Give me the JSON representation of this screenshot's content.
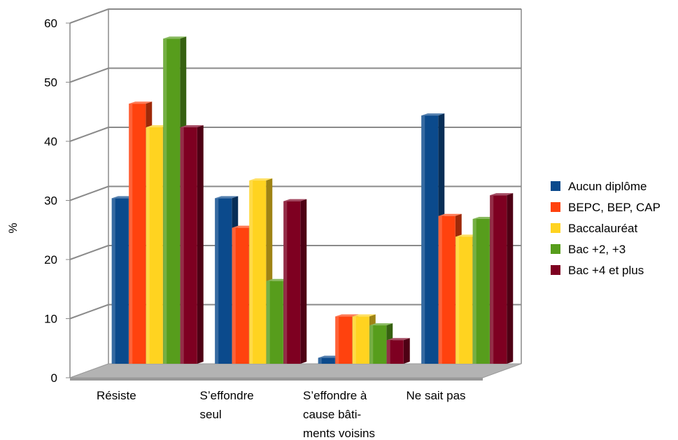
{
  "chart_data": {
    "type": "bar",
    "title": "",
    "ylabel": "%",
    "xlabel": "",
    "ylim": [
      0,
      60
    ],
    "yticks": [
      0,
      10,
      20,
      30,
      40,
      50,
      60
    ],
    "grid": true,
    "legend_position": "right",
    "categories": [
      [
        "Résiste"
      ],
      [
        "S’effondre",
        "seul"
      ],
      [
        "S’effondre à",
        "cause bâti-",
        "ments voisins"
      ],
      [
        "Ne sait pas"
      ]
    ],
    "series": [
      {
        "name": "Aucun diplôme",
        "color": "#0b4a8c",
        "values": [
          28,
          28,
          1,
          42
        ]
      },
      {
        "name": "BEPC, BEP, CAP",
        "color": "#ff420e",
        "values": [
          44,
          23,
          8,
          25
        ]
      },
      {
        "name": "Baccalauréat",
        "color": "#ffd320",
        "values": [
          40,
          31,
          8,
          21.5
        ]
      },
      {
        "name": "Bac +2, +3",
        "color": "#579d1c",
        "values": [
          55,
          14,
          6.5,
          24.5
        ]
      },
      {
        "name": "Bac +4 et plus",
        "color": "#7e0021",
        "values": [
          40,
          27.5,
          4,
          28.5
        ]
      }
    ]
  }
}
